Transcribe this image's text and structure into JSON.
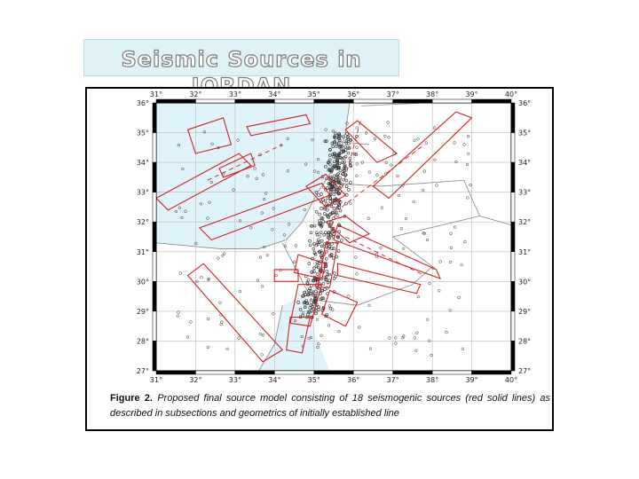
{
  "slide": {
    "title": "Seismic Sources in JORDAN"
  },
  "map": {
    "top_lon_labels": [
      "31°",
      "32°",
      "33°",
      "34°",
      "35°",
      "36°",
      "37°",
      "38°",
      "39°",
      "40°"
    ],
    "bottom_lon_labels": [
      "31°",
      "32°",
      "33°",
      "34°",
      "35°",
      "36°",
      "37°",
      "38°",
      "39°",
      "40°"
    ],
    "left_lat_labels": [
      "36°",
      "35°",
      "34°",
      "33°",
      "32°",
      "31°",
      "30°",
      "29°",
      "28°",
      "27°"
    ],
    "right_lat_labels": [
      "36°",
      "35°",
      "34°",
      "33°",
      "32°",
      "31°",
      "30°",
      "29°",
      "28°",
      "27°"
    ],
    "colors": {
      "sources": "#d42020",
      "sea": "#dff3fa",
      "epicenter": "#333333"
    }
  },
  "caption": {
    "label": "Figure 2.",
    "text": "Proposed final source model consisting of 18 seismogenic sources (red solid lines) as described in subsections and geometrics of initially established line"
  }
}
